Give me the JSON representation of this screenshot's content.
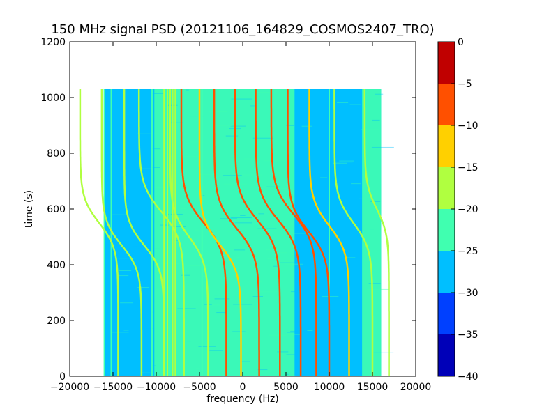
{
  "chart_data": {
    "type": "heatmap",
    "title": "150 MHz signal PSD (20121106_164829_COSMOS2407_TRO)",
    "xlabel": "frequency (Hz)",
    "ylabel": "time (s)",
    "xlim": [
      -20000,
      20000
    ],
    "ylim": [
      0,
      1200
    ],
    "x_ticks": [
      -20000,
      -15000,
      -10000,
      -5000,
      0,
      5000,
      10000,
      15000,
      20000
    ],
    "x_tick_labels": [
      "−20000",
      "−15000",
      "−10000",
      "−5000",
      "0",
      "5000",
      "10000",
      "15000",
      "20000"
    ],
    "y_ticks": [
      0,
      200,
      400,
      600,
      800,
      1000,
      1200
    ],
    "y_tick_labels": [
      "0",
      "200",
      "400",
      "600",
      "800",
      "1000",
      "1200"
    ],
    "data_extent": {
      "x": [
        -16000,
        16000
      ],
      "y": [
        0,
        1030
      ]
    },
    "background_level": -27.5,
    "colorbar": {
      "levels": [
        -40,
        -35,
        -30,
        -25,
        -20,
        -15,
        -10,
        -5,
        0
      ],
      "tick_labels": [
        "−40",
        "−35",
        "−30",
        "−25",
        "−20",
        "−15",
        "−10",
        "−5",
        "0"
      ],
      "colors": [
        "#0000b8",
        "#0040ff",
        "#00bfff",
        "#40ffb0",
        "#b0ff40",
        "#ffd000",
        "#ff5000",
        "#c00000"
      ]
    },
    "regions": [
      {
        "x": [
          -16000,
          -10500
        ],
        "y": [
          0,
          1030
        ],
        "level": -27.5
      },
      {
        "x": [
          -10500,
          6000
        ],
        "y": [
          0,
          1030
        ],
        "level": -22.5
      },
      {
        "x": [
          6000,
          16000
        ],
        "y": [
          0,
          1030
        ],
        "level": -27.5
      },
      {
        "x": [
          13800,
          16000
        ],
        "y": [
          0,
          1030
        ],
        "level": -22.5
      }
    ],
    "vertical_lines": [
      {
        "x": -16000,
        "level": -22.5
      },
      {
        "x": -15200,
        "level": -22.5
      },
      {
        "x": -10500,
        "level": -22.5
      },
      {
        "x": -10300,
        "level": -27.5
      },
      {
        "x": -9100,
        "level": -17.5
      },
      {
        "x": -8700,
        "level": -17.5
      },
      {
        "x": -8400,
        "level": -22.5
      },
      {
        "x": -8100,
        "level": -17.5
      },
      {
        "x": -7800,
        "level": -17.5
      },
      {
        "x": -4700,
        "level": -22.5
      },
      {
        "x": 10000,
        "level": -22.5
      }
    ],
    "series": [
      {
        "center": -16600,
        "t0": 550,
        "width": 2200,
        "tau": 90,
        "level": -17.5
      },
      {
        "center": -14000,
        "t0": 470,
        "width": 2300,
        "tau": 90,
        "level": -17.5
      },
      {
        "center": -11400,
        "t0": 470,
        "width": 2300,
        "tau": 90,
        "level": -17.5
      },
      {
        "center": -9400,
        "t0": 590,
        "width": 2600,
        "tau": 100,
        "level": -17.5
      },
      {
        "center": -6200,
        "t0": 500,
        "width": 2200,
        "tau": 95,
        "level": -17.5
      },
      {
        "center": -4500,
        "t0": 550,
        "width": 2600,
        "tau": 100,
        "level": -7.5
      },
      {
        "center": -2600,
        "t0": 470,
        "width": 2400,
        "tau": 95,
        "level": -12.5
      },
      {
        "center": -700,
        "t0": 530,
        "width": 2600,
        "tau": 100,
        "level": -7.5
      },
      {
        "center": 1700,
        "t0": 560,
        "width": 2600,
        "tau": 100,
        "level": -7.5
      },
      {
        "center": 4100,
        "t0": 560,
        "width": 2600,
        "tau": 100,
        "level": -7.5
      },
      {
        "center": 5900,
        "t0": 580,
        "width": 2600,
        "tau": 100,
        "level": -7.5
      },
      {
        "center": 7600,
        "t0": 520,
        "width": 2400,
        "tau": 95,
        "level": -7.5
      },
      {
        "center": 10000,
        "t0": 540,
        "width": 2300,
        "tau": 95,
        "level": -12.5
      },
      {
        "center": 12800,
        "t0": 550,
        "width": 2200,
        "tau": 95,
        "level": -17.5
      },
      {
        "center": 15500,
        "t0": 600,
        "width": 1400,
        "tau": 90,
        "level": -17.5
      }
    ]
  }
}
